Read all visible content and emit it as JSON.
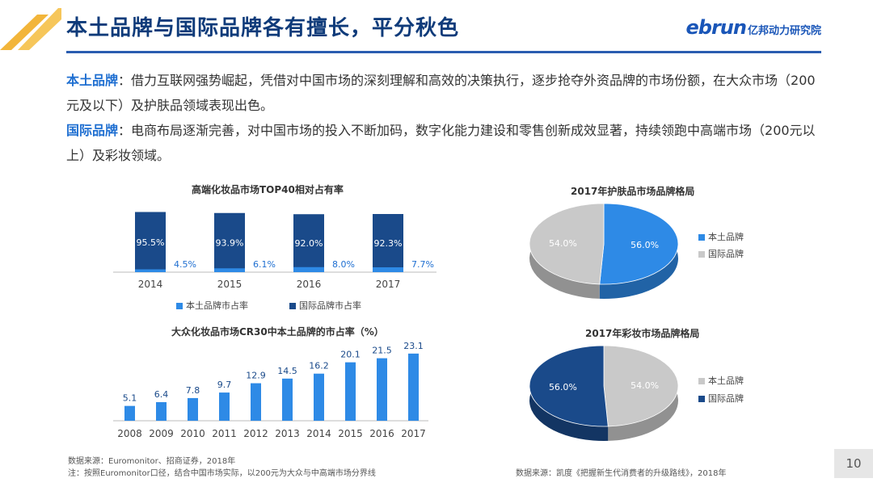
{
  "header": {
    "title": "本土品牌与国际品牌各有擅长，平分秋色",
    "logo_text": "ebrun",
    "logo_sub": "亿邦动力研究院"
  },
  "intro": {
    "local_label": "本土品牌",
    "local_text": "：借力互联网强势崛起，凭借对中国市场的深刻理解和高效的决策执行，逐步抢夺外资品牌的市场份额，在大众市场（200元及以下）及护肤品领域表现出色。",
    "intl_label": "国际品牌",
    "intl_text": "：电商布局逐渐完善，对中国市场的投入不断加码，数字化能力建设和零售创新成效显著，持续领跑中高端市场（200元以上）及彩妆领域。"
  },
  "sources": {
    "left_line1": "数据来源：Euromonitor、招商证券，2018年",
    "left_line2": "注：按照Euromonitor口径，结合中国市场实际，以200元为大众与中高端市场分界线",
    "right": "数据来源：凯度《把握新生代消费者的升级路线》，2018年"
  },
  "page_number": "10",
  "colors": {
    "local": "#2e8ae6",
    "intl": "#1a4a8a",
    "grey": "#c9c9c9",
    "title": "#0f3b7a"
  },
  "chart_data": [
    {
      "type": "bar",
      "title": "高端化妆品市场TOP40相对占有率",
      "categories": [
        "2014",
        "2015",
        "2016",
        "2017"
      ],
      "series": [
        {
          "name": "本土品牌市占率",
          "values": [
            4.5,
            6.1,
            8.0,
            7.7
          ],
          "labels": [
            "4.5%",
            "6.1%",
            "8.0%",
            "7.7%"
          ],
          "color": "#2e8ae6"
        },
        {
          "name": "国际品牌市占率",
          "values": [
            95.5,
            93.9,
            92.0,
            92.3
          ],
          "labels": [
            "95.5%",
            "93.9%",
            "92.0%",
            "92.3%"
          ],
          "color": "#1a4a8a"
        }
      ],
      "ylim": [
        0,
        100
      ]
    },
    {
      "type": "bar",
      "title": "大众化妆品市场CR30中本土品牌的市占率（%）",
      "categories": [
        "2008",
        "2009",
        "2010",
        "2011",
        "2012",
        "2013",
        "2014",
        "2015",
        "2016",
        "2017"
      ],
      "values": [
        5.1,
        6.4,
        7.8,
        9.7,
        12.9,
        14.5,
        16.2,
        20.1,
        21.5,
        23.1
      ],
      "labels": [
        "5.1",
        "6.4",
        "7.8",
        "9.7",
        "12.9",
        "14.5",
        "16.2",
        "20.1",
        "21.5",
        "23.1"
      ],
      "ylim": [
        0,
        25
      ]
    },
    {
      "type": "pie",
      "title": "2017年护肤品市场品牌格局",
      "slices": [
        {
          "name": "本土品牌",
          "value": 56.0,
          "label": "56.0%",
          "color": "#2e8ae6"
        },
        {
          "name": "国际品牌",
          "value": 54.0,
          "label": "54.0%",
          "color": "#c9c9c9"
        }
      ]
    },
    {
      "type": "pie",
      "title": "2017年彩妆市场品牌格局",
      "slices": [
        {
          "name": "本土品牌",
          "value": 54.0,
          "label": "54.0%",
          "color": "#c9c9c9"
        },
        {
          "name": "国际品牌",
          "value": 56.0,
          "label": "56.0%",
          "color": "#1a4a8a"
        }
      ]
    }
  ]
}
